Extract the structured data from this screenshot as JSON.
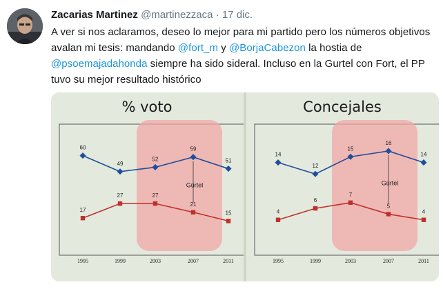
{
  "tweet": {
    "author_name": "Zacarias Martinez",
    "handle": "@martinezzaca",
    "separator": "·",
    "date": "17 dic.",
    "text_parts": [
      {
        "text": "A ver si nos aclaramos, deseo lo mejor para mi partido pero los números objetivos avalan mi tesis: mandando ",
        "mention": false
      },
      {
        "text": "@fort_m",
        "mention": true
      },
      {
        "text": " y ",
        "mention": false
      },
      {
        "text": "@BorjaCabezon",
        "mention": true
      },
      {
        "text": " la hostia de ",
        "mention": false
      },
      {
        "text": "@psoemajadahonda",
        "mention": true
      },
      {
        "text": " siempre ha sido sideral. Incluso en la Gurtel con Fort, el PP tuvo su mejor resultado histórico",
        "mention": false
      }
    ]
  },
  "colors": {
    "mention": "#1b95e0",
    "series_blue": "#1f4e9a",
    "series_red": "#c0302a",
    "highlight": "#f2a7a7",
    "paper": "#e4e9de"
  },
  "chart_data": [
    {
      "type": "line",
      "title": "% voto",
      "categories": [
        "1995",
        "1999",
        "2003",
        "2007",
        "2011"
      ],
      "series": [
        {
          "values": [
            60,
            49,
            52,
            59,
            51
          ]
        },
        {
          "values": [
            17,
            27,
            27,
            21,
            15
          ]
        }
      ],
      "annotation": "Gürtel",
      "ylim": [
        0,
        75
      ],
      "highlight": "2003–2011 shaded"
    },
    {
      "type": "line",
      "title": "Concejales",
      "categories": [
        "1995",
        "1999",
        "2003",
        "2007",
        "2011"
      ],
      "series": [
        {
          "values": [
            14,
            12,
            15,
            16,
            14
          ]
        },
        {
          "values": [
            4,
            6,
            7,
            5,
            4
          ]
        }
      ],
      "annotation": "Gürtel",
      "ylim": [
        0,
        19
      ],
      "highlight": "2003–2011 shaded"
    }
  ]
}
